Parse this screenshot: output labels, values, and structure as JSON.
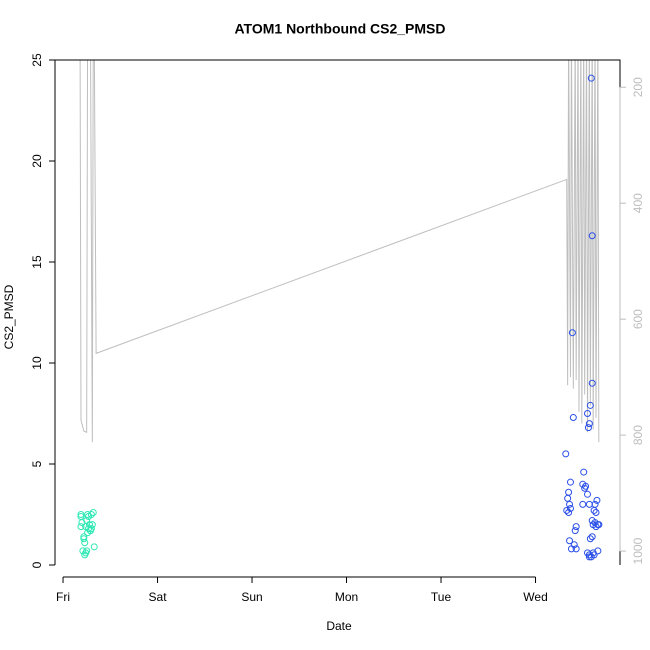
{
  "chart_data": {
    "type": "scatter",
    "title": "ATOM1 Northbound CS2_PMSD",
    "x_label": "Date",
    "y_label": "CS2_PMSD",
    "xlim": [
      -0.085,
      5.894
    ],
    "xticks": [
      {
        "value": 0,
        "label": "Fri"
      },
      {
        "value": 1,
        "label": "Sat"
      },
      {
        "value": 2,
        "label": "Sun"
      },
      {
        "value": 3,
        "label": "Mon"
      },
      {
        "value": 4,
        "label": "Tue"
      },
      {
        "value": 5,
        "label": "Wed"
      }
    ],
    "ylim": [
      0,
      25
    ],
    "yticks": [
      0,
      5,
      10,
      15,
      20,
      25
    ],
    "y2lim": [
      1024,
      153
    ],
    "y2ticks": [
      200,
      400,
      600,
      800,
      1000
    ],
    "y2_color": "#bdbdbd",
    "series": [
      {
        "mode": "line",
        "axis": "y2",
        "color": "#bebebe",
        "x": [
          0.18,
          0.19,
          0.22,
          0.25,
          0.26,
          0.29,
          0.31,
          0.32,
          0.33,
          0.35,
          5.33,
          5.34,
          5.35,
          5.37,
          5.38,
          5.4,
          5.42,
          5.43,
          5.45,
          5.46,
          5.48,
          5.49,
          5.51,
          5.52,
          5.54,
          5.55,
          5.57,
          5.58,
          5.6,
          5.61,
          5.63,
          5.64,
          5.66,
          5.67
        ],
        "values": [
          100,
          774,
          793,
          795,
          100,
          100,
          812,
          100,
          100,
          659,
          359,
          714,
          100,
          700,
          100,
          720,
          100,
          705,
          100,
          760,
          100,
          780,
          100,
          730,
          100,
          795,
          100,
          750,
          100,
          790,
          100,
          770,
          100,
          812
        ]
      },
      {
        "mode": "points",
        "color": "#2ee8b4",
        "x": [
          0.19,
          0.19,
          0.2,
          0.19,
          0.22,
          0.22,
          0.21,
          0.23,
          0.24,
          0.25,
          0.23,
          0.24,
          0.26,
          0.27,
          0.28,
          0.27,
          0.29,
          0.3,
          0.31,
          0.3,
          0.29,
          0.33,
          0.32,
          0.26,
          0.25
        ],
        "values": [
          2.4,
          2.5,
          2.1,
          1.9,
          1.4,
          1.3,
          0.7,
          0.5,
          0.6,
          0.7,
          1.1,
          1.9,
          2.5,
          2.4,
          2.0,
          1.8,
          1.7,
          2.5,
          2.0,
          1.8,
          1.7,
          0.9,
          2.6,
          1.6,
          2.2
        ]
      },
      {
        "mode": "points",
        "color": "#2a4fe8",
        "x": [
          5.39,
          5.59,
          5.6,
          5.6,
          5.58,
          5.57,
          5.56,
          5.4,
          5.55,
          5.32,
          5.51,
          5.37,
          5.5,
          5.53,
          5.52,
          5.55,
          5.35,
          5.34,
          5.36,
          5.37,
          5.33,
          5.35,
          5.5,
          5.57,
          5.65,
          5.63,
          5.64,
          5.62,
          5.6,
          5.63,
          5.67,
          5.66,
          5.64,
          5.61,
          5.43,
          5.42,
          5.36,
          5.38,
          5.41,
          5.43,
          5.58,
          5.6,
          5.55,
          5.57,
          5.59,
          5.62,
          5.61,
          5.66,
          5.57
        ],
        "values": [
          11.5,
          24.1,
          16.3,
          9.0,
          7.9,
          7.0,
          6.8,
          7.3,
          7.5,
          5.5,
          4.6,
          4.1,
          4.0,
          3.9,
          3.8,
          3.5,
          3.6,
          3.3,
          3.0,
          2.8,
          2.7,
          2.6,
          3.0,
          3.0,
          3.2,
          3.0,
          2.6,
          2.7,
          2.2,
          2.1,
          2.0,
          2.0,
          1.9,
          2.0,
          1.9,
          1.7,
          1.2,
          0.8,
          1.0,
          0.8,
          1.3,
          1.4,
          0.6,
          0.5,
          0.4,
          0.5,
          0.6,
          0.7,
          0.4
        ]
      }
    ]
  }
}
